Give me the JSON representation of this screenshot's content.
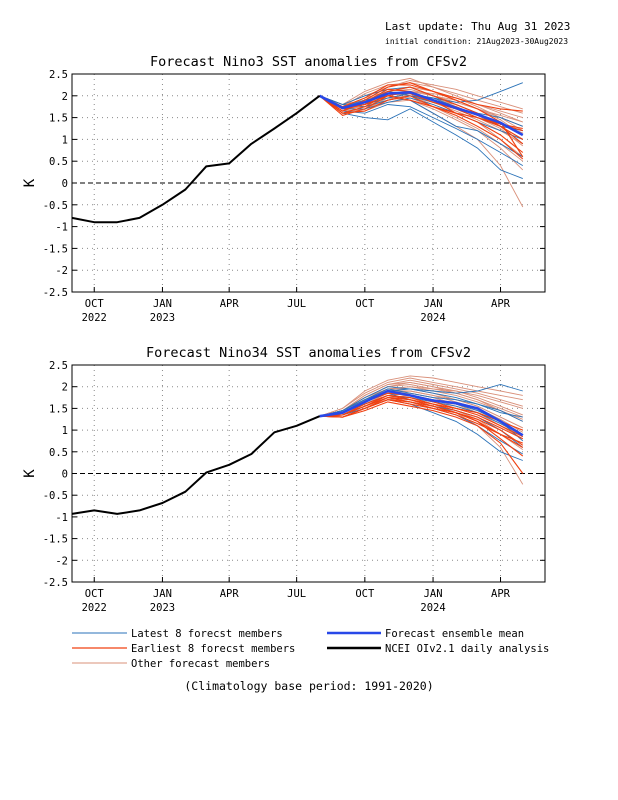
{
  "header": {
    "last_update": "Last update: Thu Aug 31 2023",
    "initial_condition": "initial condition: 21Aug2023-30Aug2023"
  },
  "legend": {
    "latest": "Latest 8 forecst members",
    "earliest": "Earliest 8 forecst members",
    "other": "Other forecast members",
    "mean": "Forecast ensemble mean",
    "obs": "NCEI OIv2.1 daily analysis"
  },
  "footer": "(Climatology base period: 1991-2020)",
  "colors": {
    "latest": "#2a72b8",
    "earliest": "#f04010",
    "other": "#d9907a",
    "mean": "#2848e8",
    "obs": "#000000"
  },
  "chart_data": [
    {
      "type": "line",
      "title": "Forecast Nino3 SST anomalies from CFSv2",
      "ylabel": "K",
      "ylim": [
        -2.5,
        2.5
      ],
      "yticks": [
        -2.5,
        -2,
        -1.5,
        -1,
        -0.5,
        0,
        0.5,
        1,
        1.5,
        2,
        2.5
      ],
      "yticklabels": [
        "-2.5",
        "-2",
        "-1.5",
        "-1",
        "-0.5",
        "0",
        "0.5",
        "1",
        "1.5",
        "2",
        "2.5"
      ],
      "xlim": [
        "2022-09-01",
        "2024-05-31"
      ],
      "xticks": [
        {
          "date": "2022-10-01",
          "l1": "OCT",
          "l2": "2022"
        },
        {
          "date": "2023-01-01",
          "l1": "JAN",
          "l2": "2023"
        },
        {
          "date": "2023-04-01",
          "l1": "APR",
          "l2": ""
        },
        {
          "date": "2023-07-01",
          "l1": "JUL",
          "l2": ""
        },
        {
          "date": "2023-10-01",
          "l1": "OCT",
          "l2": ""
        },
        {
          "date": "2024-01-01",
          "l1": "JAN",
          "l2": "2024"
        },
        {
          "date": "2024-04-01",
          "l1": "APR",
          "l2": ""
        }
      ],
      "grid": true,
      "zero_line": true,
      "observed": {
        "name": "NCEI OIv2.1 daily analysis",
        "dates": [
          "2022-09-01",
          "2022-10-01",
          "2022-11-01",
          "2022-12-01",
          "2023-01-01",
          "2023-02-01",
          "2023-03-01",
          "2023-04-01",
          "2023-05-01",
          "2023-06-01",
          "2023-07-01",
          "2023-08-01"
        ],
        "values": [
          -0.8,
          -0.9,
          -0.9,
          -0.8,
          -0.5,
          -0.15,
          0.38,
          0.45,
          0.9,
          1.25,
          1.6,
          2.0
        ]
      },
      "forecast_dates": [
        "2023-08-01",
        "2023-09-01",
        "2023-10-01",
        "2023-11-01",
        "2023-12-01",
        "2024-01-01",
        "2024-02-01",
        "2024-03-01",
        "2024-04-01",
        "2024-05-01"
      ],
      "ensemble_mean": [
        2.0,
        1.72,
        1.85,
        2.05,
        2.08,
        1.9,
        1.72,
        1.57,
        1.38,
        1.1
      ],
      "members": {
        "latest": [
          [
            2.0,
            1.8,
            1.75,
            1.9,
            2.0,
            1.95,
            1.85,
            1.9,
            2.1,
            2.3
          ],
          [
            2.0,
            1.6,
            1.5,
            1.45,
            1.7,
            1.4,
            1.1,
            0.8,
            0.3,
            0.1
          ],
          [
            2.0,
            1.75,
            1.9,
            2.0,
            1.9,
            1.6,
            1.3,
            1.2,
            0.9,
            0.6
          ],
          [
            2.0,
            1.7,
            1.85,
            2.1,
            2.0,
            1.85,
            1.7,
            1.5,
            1.3,
            1.2
          ],
          [
            2.0,
            1.65,
            1.6,
            1.8,
            1.75,
            1.5,
            1.25,
            1.0,
            0.7,
            0.4
          ],
          [
            2.0,
            1.8,
            2.0,
            2.15,
            2.2,
            2.0,
            1.8,
            1.6,
            1.5,
            1.3
          ],
          [
            2.0,
            1.7,
            1.7,
            1.85,
            1.95,
            1.8,
            1.6,
            1.4,
            1.2,
            1.0
          ],
          [
            2.0,
            1.75,
            1.8,
            1.95,
            2.05,
            1.95,
            1.75,
            1.55,
            1.3,
            0.9
          ]
        ],
        "earliest": [
          [
            2.0,
            1.65,
            1.9,
            2.2,
            2.3,
            2.1,
            1.9,
            1.7,
            1.4,
            0.6
          ],
          [
            2.0,
            1.55,
            1.7,
            2.0,
            2.1,
            1.9,
            1.6,
            1.4,
            1.1,
            0.7
          ],
          [
            2.0,
            1.7,
            1.8,
            2.1,
            2.2,
            2.0,
            1.8,
            1.6,
            1.3,
            0.9
          ],
          [
            2.0,
            1.6,
            1.75,
            2.05,
            2.05,
            1.85,
            1.7,
            1.5,
            1.3,
            1.0
          ],
          [
            2.0,
            1.75,
            1.95,
            2.25,
            2.25,
            2.1,
            1.95,
            1.8,
            1.7,
            1.65
          ],
          [
            2.0,
            1.6,
            1.65,
            1.9,
            2.0,
            1.75,
            1.55,
            1.3,
            1.0,
            0.55
          ],
          [
            2.0,
            1.65,
            1.85,
            2.15,
            2.1,
            1.9,
            1.75,
            1.55,
            1.35,
            1.2
          ],
          [
            2.0,
            1.7,
            1.8,
            2.0,
            1.9,
            1.75,
            1.6,
            1.5,
            1.35,
            1.25
          ]
        ],
        "other": [
          [
            2.0,
            1.8,
            2.1,
            2.3,
            2.4,
            2.2,
            2.0,
            1.8,
            1.6,
            1.4
          ],
          [
            2.0,
            1.7,
            1.8,
            2.0,
            2.1,
            2.0,
            1.9,
            1.7,
            1.5,
            1.2
          ],
          [
            2.0,
            1.75,
            1.9,
            2.2,
            2.3,
            2.1,
            1.9,
            1.7,
            1.45,
            1.1
          ],
          [
            2.0,
            1.65,
            1.7,
            1.9,
            2.0,
            1.8,
            1.6,
            1.4,
            1.0,
            0.6
          ],
          [
            2.0,
            1.8,
            2.0,
            2.2,
            2.35,
            2.25,
            2.15,
            2.0,
            1.85,
            1.7
          ],
          [
            2.0,
            1.7,
            1.75,
            1.95,
            2.05,
            1.95,
            1.8,
            1.6,
            1.3,
            1.0
          ],
          [
            2.0,
            1.6,
            1.65,
            1.85,
            1.9,
            1.7,
            1.45,
            1.2,
            0.8,
            0.3
          ],
          [
            2.0,
            1.75,
            1.95,
            2.1,
            2.15,
            2.0,
            1.85,
            1.7,
            1.55,
            1.4
          ],
          [
            2.0,
            1.7,
            1.85,
            2.05,
            2.0,
            1.85,
            1.65,
            1.45,
            1.2,
            0.9
          ],
          [
            2.0,
            1.8,
            1.9,
            2.0,
            2.1,
            2.05,
            1.95,
            1.8,
            1.65,
            1.5
          ],
          [
            2.0,
            1.65,
            1.8,
            2.0,
            1.95,
            1.75,
            1.5,
            1.25,
            0.9,
            0.5
          ],
          [
            2.0,
            1.75,
            2.05,
            2.25,
            2.3,
            2.2,
            2.05,
            1.9,
            1.75,
            1.6
          ],
          [
            2.0,
            1.7,
            1.8,
            1.95,
            2.0,
            1.9,
            1.8,
            1.6,
            1.35,
            1.15
          ],
          [
            2.0,
            1.6,
            1.7,
            1.95,
            1.9,
            1.6,
            1.3,
            1.0,
            0.4,
            -0.55
          ],
          [
            2.0,
            1.75,
            1.9,
            2.1,
            2.2,
            2.1,
            1.95,
            1.75,
            1.5,
            1.3
          ],
          [
            2.0,
            1.7,
            1.75,
            1.9,
            2.0,
            1.85,
            1.7,
            1.5,
            1.25,
            0.85
          ]
        ]
      }
    },
    {
      "type": "line",
      "title": "Forecast Nino34 SST anomalies from CFSv2",
      "ylabel": "K",
      "ylim": [
        -2.5,
        2.5
      ],
      "yticks": [
        -2.5,
        -2,
        -1.5,
        -1,
        -0.5,
        0,
        0.5,
        1,
        1.5,
        2,
        2.5
      ],
      "yticklabels": [
        "-2.5",
        "-2",
        "-1.5",
        "-1",
        "-0.5",
        "0",
        "0.5",
        "1",
        "1.5",
        "2",
        "2.5"
      ],
      "xlim": [
        "2022-09-01",
        "2024-05-31"
      ],
      "xticks": [
        {
          "date": "2022-10-01",
          "l1": "OCT",
          "l2": "2022"
        },
        {
          "date": "2023-01-01",
          "l1": "JAN",
          "l2": "2023"
        },
        {
          "date": "2023-04-01",
          "l1": "APR",
          "l2": ""
        },
        {
          "date": "2023-07-01",
          "l1": "JUL",
          "l2": ""
        },
        {
          "date": "2023-10-01",
          "l1": "OCT",
          "l2": ""
        },
        {
          "date": "2024-01-01",
          "l1": "JAN",
          "l2": "2024"
        },
        {
          "date": "2024-04-01",
          "l1": "APR",
          "l2": ""
        }
      ],
      "grid": true,
      "zero_line": true,
      "observed": {
        "name": "NCEI OIv2.1 daily analysis",
        "dates": [
          "2022-09-01",
          "2022-10-01",
          "2022-11-01",
          "2022-12-01",
          "2023-01-01",
          "2023-02-01",
          "2023-03-01",
          "2023-04-01",
          "2023-05-01",
          "2023-06-01",
          "2023-07-01",
          "2023-08-01"
        ],
        "values": [
          -0.93,
          -0.85,
          -0.93,
          -0.85,
          -0.68,
          -0.42,
          0.02,
          0.2,
          0.45,
          0.95,
          1.1,
          1.32
        ]
      },
      "forecast_dates": [
        "2023-08-01",
        "2023-09-01",
        "2023-10-01",
        "2023-11-01",
        "2023-12-01",
        "2024-01-01",
        "2024-02-01",
        "2024-03-01",
        "2024-04-01",
        "2024-05-01"
      ],
      "ensemble_mean": [
        1.32,
        1.4,
        1.65,
        1.9,
        1.8,
        1.68,
        1.62,
        1.5,
        1.2,
        0.88
      ],
      "members": {
        "latest": [
          [
            1.32,
            1.45,
            1.7,
            1.9,
            1.95,
            1.9,
            1.85,
            1.9,
            2.05,
            1.9
          ],
          [
            1.32,
            1.35,
            1.5,
            1.7,
            1.6,
            1.4,
            1.2,
            0.9,
            0.5,
            0.3
          ],
          [
            1.32,
            1.4,
            1.65,
            1.85,
            1.7,
            1.55,
            1.45,
            1.3,
            1.0,
            0.6
          ],
          [
            1.32,
            1.45,
            1.75,
            2.0,
            1.95,
            1.85,
            1.75,
            1.6,
            1.4,
            1.3
          ],
          [
            1.32,
            1.35,
            1.55,
            1.75,
            1.65,
            1.5,
            1.35,
            1.1,
            0.75,
            0.45
          ],
          [
            1.32,
            1.45,
            1.7,
            1.95,
            1.85,
            1.75,
            1.7,
            1.6,
            1.45,
            1.2
          ],
          [
            1.32,
            1.4,
            1.6,
            1.8,
            1.75,
            1.65,
            1.55,
            1.4,
            1.15,
            0.9
          ],
          [
            1.32,
            1.4,
            1.65,
            1.9,
            1.8,
            1.7,
            1.6,
            1.45,
            1.2,
            0.75
          ]
        ],
        "earliest": [
          [
            1.32,
            1.3,
            1.5,
            1.7,
            1.6,
            1.5,
            1.4,
            1.2,
            0.8,
            0.4
          ],
          [
            1.32,
            1.35,
            1.55,
            1.8,
            1.7,
            1.55,
            1.4,
            1.2,
            0.9,
            0.6
          ],
          [
            1.32,
            1.3,
            1.45,
            1.65,
            1.55,
            1.45,
            1.3,
            1.1,
            0.7,
            0.0
          ],
          [
            1.32,
            1.4,
            1.65,
            1.85,
            1.8,
            1.65,
            1.5,
            1.35,
            1.1,
            0.85
          ],
          [
            1.32,
            1.35,
            1.6,
            1.8,
            1.75,
            1.6,
            1.5,
            1.4,
            1.2,
            1.0
          ],
          [
            1.32,
            1.3,
            1.5,
            1.75,
            1.65,
            1.5,
            1.35,
            1.15,
            0.9,
            0.7
          ],
          [
            1.32,
            1.35,
            1.55,
            1.75,
            1.7,
            1.6,
            1.45,
            1.3,
            1.05,
            0.8
          ],
          [
            1.32,
            1.3,
            1.5,
            1.7,
            1.65,
            1.55,
            1.4,
            1.25,
            1.0,
            0.65
          ]
        ],
        "other": [
          [
            1.32,
            1.5,
            1.85,
            2.1,
            2.2,
            2.1,
            2.0,
            1.9,
            1.8,
            1.7
          ],
          [
            1.32,
            1.45,
            1.75,
            2.0,
            2.05,
            1.95,
            1.85,
            1.7,
            1.5,
            1.3
          ],
          [
            1.32,
            1.4,
            1.6,
            1.85,
            1.9,
            1.8,
            1.7,
            1.55,
            1.3,
            1.05
          ],
          [
            1.32,
            1.45,
            1.8,
            2.05,
            2.15,
            2.05,
            1.95,
            1.85,
            1.7,
            1.55
          ],
          [
            1.32,
            1.35,
            1.55,
            1.75,
            1.8,
            1.7,
            1.55,
            1.4,
            1.1,
            0.8
          ],
          [
            1.32,
            1.45,
            1.7,
            1.95,
            2.0,
            1.95,
            1.9,
            1.8,
            1.65,
            1.5
          ],
          [
            1.32,
            1.4,
            1.65,
            1.9,
            1.9,
            1.8,
            1.65,
            1.5,
            1.25,
            0.95
          ],
          [
            1.32,
            1.5,
            1.9,
            2.15,
            2.25,
            2.2,
            2.1,
            2.0,
            1.9,
            1.8
          ],
          [
            1.32,
            1.35,
            1.5,
            1.7,
            1.75,
            1.6,
            1.45,
            1.25,
            0.9,
            0.55
          ],
          [
            1.32,
            1.45,
            1.75,
            2.0,
            2.1,
            2.0,
            1.9,
            1.75,
            1.55,
            1.35
          ],
          [
            1.32,
            1.4,
            1.6,
            1.8,
            1.85,
            1.75,
            1.6,
            1.4,
            1.15,
            0.85
          ],
          [
            1.32,
            1.45,
            1.8,
            2.05,
            2.1,
            2.0,
            1.85,
            1.7,
            1.45,
            1.2
          ],
          [
            1.32,
            1.35,
            1.55,
            1.8,
            1.75,
            1.6,
            1.4,
            1.1,
            0.6,
            -0.25
          ],
          [
            1.32,
            1.4,
            1.7,
            1.95,
            2.0,
            1.9,
            1.8,
            1.65,
            1.45,
            1.25
          ],
          [
            1.32,
            1.45,
            1.75,
            1.95,
            1.95,
            1.85,
            1.7,
            1.55,
            1.3,
            1.05
          ],
          [
            1.32,
            1.4,
            1.65,
            1.85,
            1.85,
            1.75,
            1.6,
            1.45,
            1.2,
            0.9
          ]
        ]
      }
    }
  ]
}
